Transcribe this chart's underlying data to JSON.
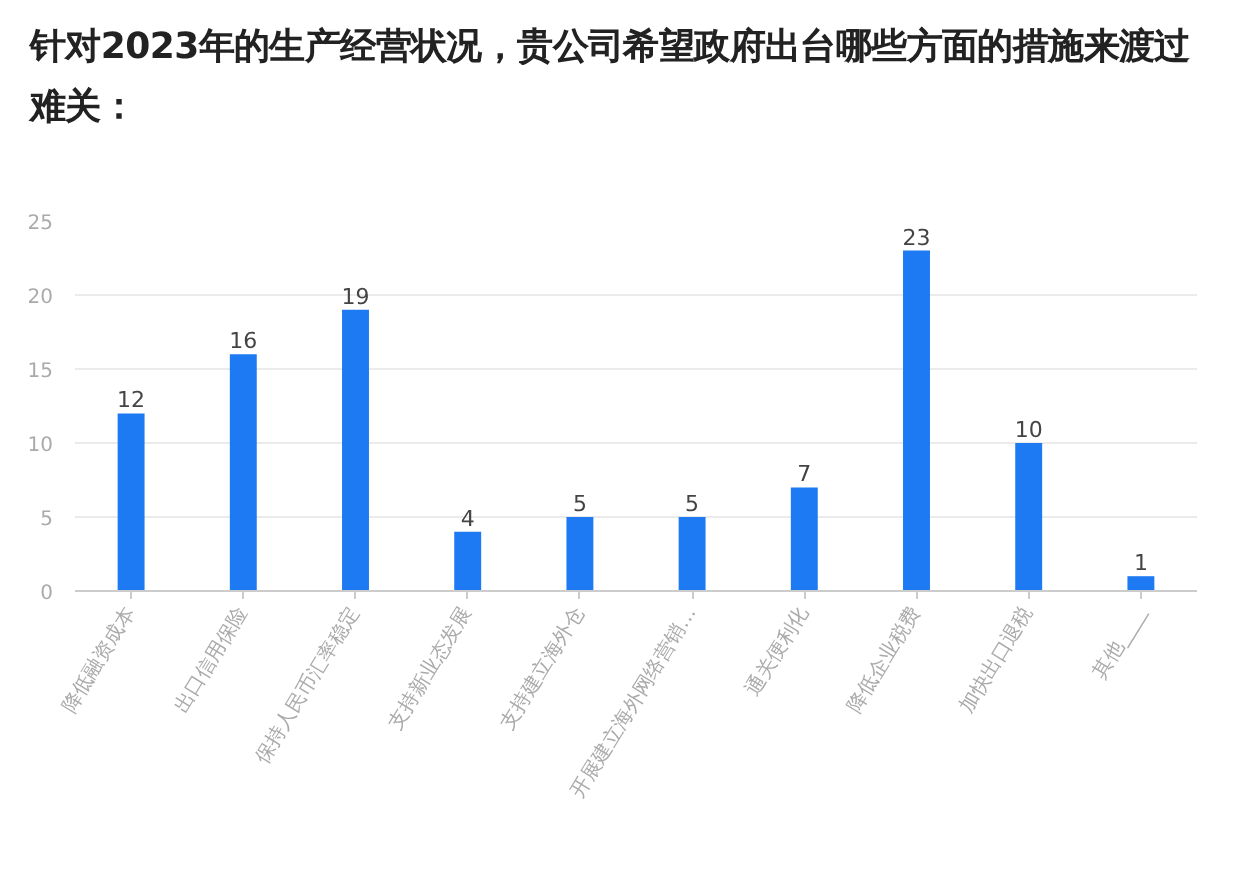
{
  "chart_data": {
    "type": "bar",
    "title": "针对2023年的生产经营状况，贵公司希望政府出台哪些方面的措施来渡过难关：",
    "categories": [
      "降低融资成本",
      "出口信用保险",
      "保持人民币汇率稳定",
      "支持新业态发展",
      "支持建立海外仓",
      "开展建立海外网络营销…",
      "通关便利化",
      "降低企业税费",
      "加快出口退税",
      "其他____"
    ],
    "values": [
      12,
      16,
      19,
      4,
      5,
      5,
      7,
      23,
      10,
      1
    ],
    "color": "#1d7af3",
    "ylim": [
      0,
      25
    ],
    "yticks": [
      0,
      5,
      10,
      15,
      20,
      25
    ],
    "grid": "y",
    "data_labels": true
  }
}
